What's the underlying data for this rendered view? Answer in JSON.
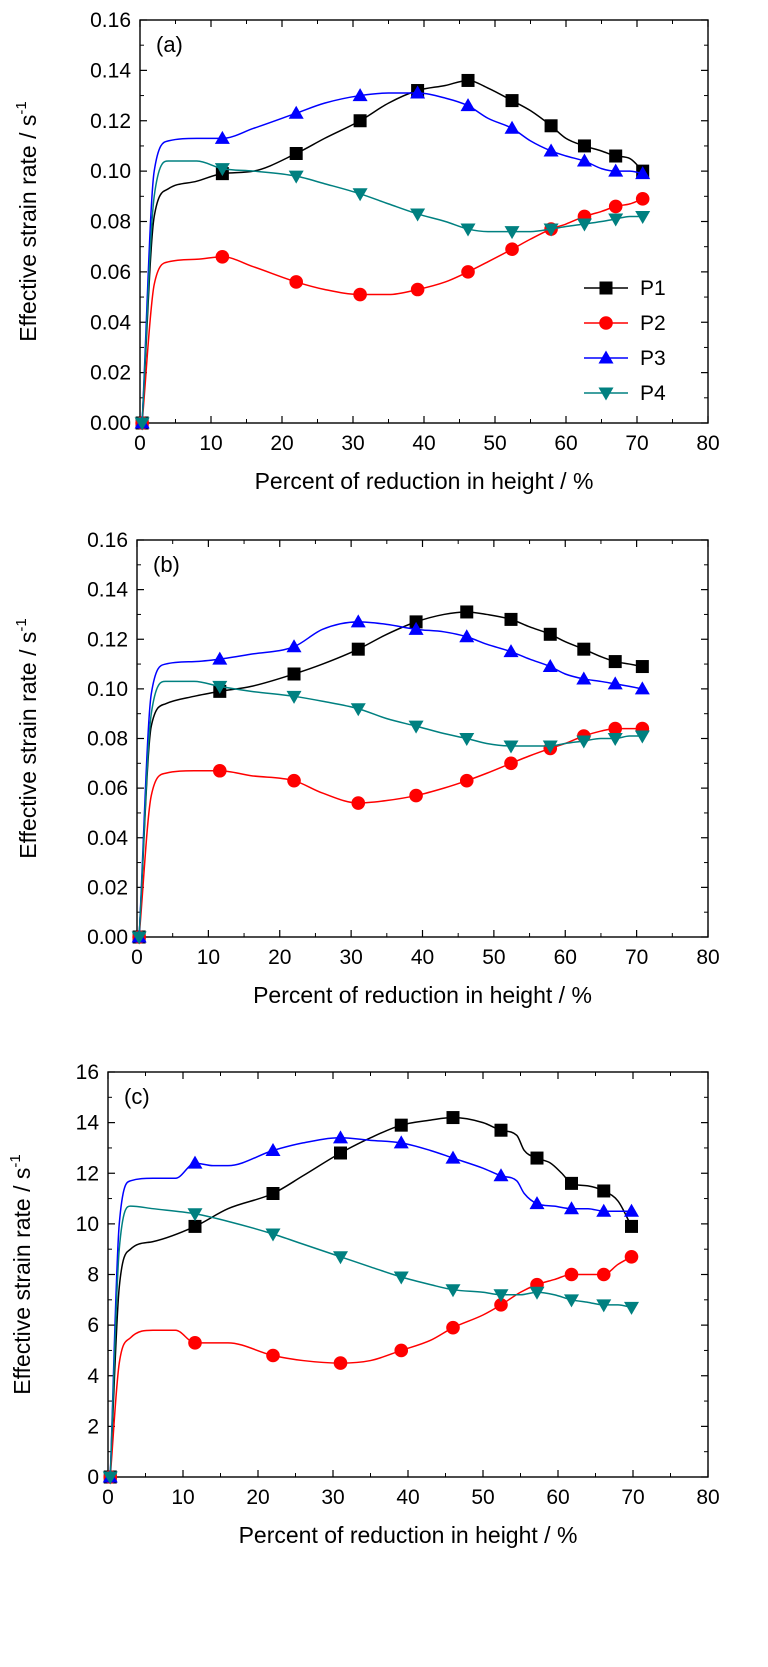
{
  "series_styles": [
    {
      "name": "P1",
      "color": "#000000",
      "marker": "square"
    },
    {
      "name": "P2",
      "color": "#ff0000",
      "marker": "circle"
    },
    {
      "name": "P3",
      "color": "#0000ff",
      "marker": "triangle-up"
    },
    {
      "name": "P4",
      "color": "#008080",
      "marker": "triangle-down"
    }
  ],
  "chart_data": [
    {
      "type": "line",
      "panel_label": "(a)",
      "xlabel": "Percent of reduction in height / %",
      "ylabel": "Effective strain rate / s",
      "ylabel_superscript": "-1",
      "xlim": [
        0,
        80
      ],
      "ylim": [
        0,
        0.16
      ],
      "xticks": [
        "0",
        "10",
        "20",
        "30",
        "40",
        "50",
        "60",
        "70",
        "80"
      ],
      "yticks": [
        "0.00",
        "0.02",
        "0.04",
        "0.06",
        "0.08",
        "0.10",
        "0.12",
        "0.14",
        "0.16"
      ],
      "legend": [
        "P1",
        "P2",
        "P3",
        "P4"
      ],
      "legend_position": "right",
      "grid": false,
      "x": [
        0.3,
        11.6,
        22.0,
        31.0,
        39.1,
        46.2,
        52.4,
        57.9,
        62.6,
        67.0,
        70.8
      ],
      "series": [
        {
          "name": "P1",
          "values": [
            0.0,
            0.099,
            0.107,
            0.12,
            0.132,
            0.136,
            0.128,
            0.118,
            0.11,
            0.106,
            0.1
          ],
          "curve_x": [
            0.3,
            2,
            4,
            8,
            11.6,
            16,
            22.0,
            26,
            31.0,
            35,
            39.1,
            43,
            46.2,
            49,
            52.4,
            55,
            57.9,
            60,
            62.6,
            65,
            67.0,
            69,
            70.8
          ],
          "curve_y": [
            0.0,
            0.082,
            0.093,
            0.096,
            0.099,
            0.1,
            0.107,
            0.113,
            0.12,
            0.127,
            0.132,
            0.134,
            0.136,
            0.133,
            0.128,
            0.124,
            0.118,
            0.113,
            0.11,
            0.108,
            0.106,
            0.105,
            0.1
          ]
        },
        {
          "name": "P2",
          "values": [
            0.0,
            0.066,
            0.056,
            0.051,
            0.053,
            0.06,
            0.069,
            0.077,
            0.082,
            0.086,
            0.089
          ],
          "curve_x": [
            0.3,
            2,
            4,
            8,
            11.6,
            16,
            22.0,
            26,
            31.0,
            35,
            39.1,
            43,
            46.2,
            49,
            52.4,
            55,
            57.9,
            60,
            62.6,
            65,
            67.0,
            69,
            70.8
          ],
          "curve_y": [
            0.0,
            0.055,
            0.064,
            0.065,
            0.066,
            0.062,
            0.056,
            0.053,
            0.051,
            0.051,
            0.053,
            0.056,
            0.06,
            0.064,
            0.069,
            0.073,
            0.077,
            0.079,
            0.082,
            0.084,
            0.086,
            0.087,
            0.089
          ]
        },
        {
          "name": "P3",
          "values": [
            0.0,
            0.113,
            0.123,
            0.13,
            0.131,
            0.126,
            0.117,
            0.108,
            0.104,
            0.1,
            0.099
          ],
          "curve_x": [
            0.3,
            2,
            4,
            8,
            11.6,
            16,
            22.0,
            26,
            31.0,
            35,
            39.1,
            43,
            46.2,
            49,
            52.4,
            55,
            57.9,
            60,
            62.6,
            65,
            67.0,
            69,
            70.8
          ],
          "curve_y": [
            0.0,
            0.1,
            0.112,
            0.113,
            0.113,
            0.117,
            0.123,
            0.127,
            0.13,
            0.131,
            0.131,
            0.129,
            0.126,
            0.121,
            0.117,
            0.112,
            0.108,
            0.106,
            0.104,
            0.101,
            0.1,
            0.1,
            0.099
          ]
        },
        {
          "name": "P4",
          "values": [
            0.0,
            0.101,
            0.098,
            0.091,
            0.083,
            0.077,
            0.076,
            0.077,
            0.079,
            0.081,
            0.082
          ],
          "curve_x": [
            0.3,
            2,
            4,
            8,
            11.6,
            16,
            22.0,
            26,
            31.0,
            35,
            39.1,
            43,
            46.2,
            49,
            52.4,
            55,
            57.9,
            60,
            62.6,
            65,
            67.0,
            69,
            70.8
          ],
          "curve_y": [
            0.0,
            0.09,
            0.104,
            0.104,
            0.101,
            0.1,
            0.098,
            0.095,
            0.091,
            0.087,
            0.083,
            0.08,
            0.077,
            0.076,
            0.076,
            0.076,
            0.077,
            0.078,
            0.079,
            0.08,
            0.081,
            0.082,
            0.082
          ]
        }
      ]
    },
    {
      "type": "line",
      "panel_label": "(b)",
      "xlabel": "Percent of reduction in height / %",
      "ylabel": "Effective strain rate / s",
      "ylabel_superscript": "-1",
      "xlim": [
        0,
        80
      ],
      "ylim": [
        0,
        0.16
      ],
      "xticks": [
        "0",
        "10",
        "20",
        "30",
        "40",
        "50",
        "60",
        "70",
        "80"
      ],
      "yticks": [
        "0.00",
        "0.02",
        "0.04",
        "0.06",
        "0.08",
        "0.10",
        "0.12",
        "0.14",
        "0.16"
      ],
      "legend": [],
      "grid": false,
      "x": [
        0.3,
        11.6,
        22.0,
        31.0,
        39.1,
        46.2,
        52.4,
        57.9,
        62.6,
        67.0,
        70.8
      ],
      "series": [
        {
          "name": "P1",
          "values": [
            0.0,
            0.099,
            0.106,
            0.116,
            0.127,
            0.131,
            0.128,
            0.122,
            0.116,
            0.111,
            0.109
          ],
          "curve_x": [
            0.3,
            2,
            4,
            8,
            11.6,
            16,
            22.0,
            26,
            31.0,
            35,
            39.1,
            43,
            46.2,
            49,
            52.4,
            55,
            57.9,
            60,
            62.6,
            65,
            67.0,
            69,
            70.8
          ],
          "curve_y": [
            0.0,
            0.085,
            0.094,
            0.097,
            0.099,
            0.101,
            0.106,
            0.11,
            0.116,
            0.122,
            0.127,
            0.13,
            0.131,
            0.13,
            0.128,
            0.125,
            0.122,
            0.119,
            0.116,
            0.113,
            0.111,
            0.11,
            0.109
          ]
        },
        {
          "name": "P2",
          "values": [
            0.0,
            0.067,
            0.063,
            0.054,
            0.057,
            0.063,
            0.07,
            0.076,
            0.081,
            0.084,
            0.084
          ],
          "curve_x": [
            0.3,
            2,
            4,
            8,
            11.6,
            16,
            22.0,
            26,
            31.0,
            35,
            39.1,
            43,
            46.2,
            49,
            52.4,
            55,
            57.9,
            60,
            62.6,
            65,
            67.0,
            69,
            70.8
          ],
          "curve_y": [
            0.0,
            0.057,
            0.066,
            0.067,
            0.067,
            0.065,
            0.063,
            0.058,
            0.054,
            0.055,
            0.057,
            0.06,
            0.063,
            0.066,
            0.07,
            0.073,
            0.076,
            0.078,
            0.081,
            0.083,
            0.084,
            0.084,
            0.084
          ]
        },
        {
          "name": "P3",
          "values": [
            0.0,
            0.112,
            0.117,
            0.127,
            0.124,
            0.121,
            0.115,
            0.109,
            0.104,
            0.102,
            0.1
          ],
          "curve_x": [
            0.3,
            2,
            4,
            8,
            11.6,
            16,
            22.0,
            26,
            31.0,
            35,
            39.1,
            43,
            46.2,
            49,
            52.4,
            55,
            57.9,
            60,
            62.6,
            65,
            67.0,
            69,
            70.8
          ],
          "curve_y": [
            0.0,
            0.098,
            0.11,
            0.111,
            0.112,
            0.114,
            0.117,
            0.124,
            0.127,
            0.126,
            0.124,
            0.123,
            0.121,
            0.118,
            0.115,
            0.112,
            0.109,
            0.106,
            0.104,
            0.103,
            0.102,
            0.101,
            0.1
          ]
        },
        {
          "name": "P4",
          "values": [
            0.0,
            0.101,
            0.097,
            0.092,
            0.085,
            0.08,
            0.077,
            0.077,
            0.079,
            0.08,
            0.081
          ],
          "curve_x": [
            0.3,
            2,
            4,
            8,
            11.6,
            16,
            22.0,
            26,
            31.0,
            35,
            39.1,
            43,
            46.2,
            49,
            52.4,
            55,
            57.9,
            60,
            62.6,
            65,
            67.0,
            69,
            70.8
          ],
          "curve_y": [
            0.0,
            0.09,
            0.103,
            0.103,
            0.101,
            0.099,
            0.097,
            0.095,
            0.092,
            0.088,
            0.085,
            0.082,
            0.08,
            0.078,
            0.077,
            0.077,
            0.077,
            0.078,
            0.079,
            0.08,
            0.08,
            0.081,
            0.081
          ]
        }
      ]
    },
    {
      "type": "line",
      "panel_label": "(c)",
      "xlabel": "Percent of reduction in height / %",
      "ylabel": "Effective strain rate / s",
      "ylabel_superscript": "-1",
      "xlim": [
        0,
        80
      ],
      "ylim": [
        0,
        16
      ],
      "xticks": [
        "0",
        "10",
        "20",
        "30",
        "40",
        "50",
        "60",
        "70",
        "80"
      ],
      "yticks": [
        "0",
        "2",
        "4",
        "6",
        "8",
        "10",
        "12",
        "14",
        "16"
      ],
      "legend": [],
      "grid": false,
      "x": [
        0.3,
        11.6,
        22.0,
        31.0,
        39.1,
        46.0,
        52.4,
        57.2,
        61.8,
        66.1,
        69.8
      ],
      "series": [
        {
          "name": "P1",
          "values": [
            0.0,
            9.9,
            11.2,
            12.8,
            13.9,
            14.2,
            13.7,
            12.6,
            11.6,
            11.3,
            9.9
          ],
          "curve_x": [
            0.3,
            1.5,
            3,
            6,
            11.6,
            16,
            22.0,
            26,
            31.0,
            35,
            39.1,
            43,
            46.0,
            50,
            52.4,
            54.5,
            55.5,
            57.2,
            59,
            60.5,
            61.8,
            64,
            66.1,
            68,
            69.8
          ],
          "curve_y": [
            0.0,
            7.5,
            9.0,
            9.3,
            9.9,
            10.6,
            11.2,
            11.9,
            12.8,
            13.4,
            13.9,
            14.1,
            14.2,
            14.0,
            13.7,
            13.5,
            12.9,
            12.6,
            12.4,
            12.0,
            11.6,
            11.5,
            11.3,
            10.9,
            9.9
          ]
        },
        {
          "name": "P2",
          "values": [
            0.0,
            5.3,
            4.8,
            4.5,
            5.0,
            5.9,
            6.8,
            7.6,
            8.0,
            8.0,
            8.7
          ],
          "curve_x": [
            0.3,
            1.5,
            3,
            6,
            9,
            11.6,
            16,
            22.0,
            26,
            31.0,
            35,
            39.1,
            43,
            46.0,
            50,
            52.4,
            55,
            57.2,
            59.5,
            61.8,
            64,
            66.1,
            68,
            69.8
          ],
          "curve_y": [
            0.0,
            4.5,
            5.5,
            5.8,
            5.8,
            5.3,
            5.3,
            4.8,
            4.6,
            4.5,
            4.6,
            5.0,
            5.4,
            5.9,
            6.4,
            6.8,
            7.3,
            7.6,
            7.8,
            8.0,
            8.0,
            8.0,
            8.4,
            8.7
          ]
        },
        {
          "name": "P3",
          "values": [
            0.0,
            12.4,
            12.9,
            13.4,
            13.2,
            12.6,
            11.9,
            10.8,
            10.6,
            10.5,
            10.5
          ],
          "curve_x": [
            0.3,
            1.5,
            3,
            6,
            9,
            11.6,
            14,
            16,
            22.0,
            26,
            31.0,
            35,
            39.1,
            43,
            46.0,
            50,
            52.4,
            54.5,
            55.5,
            57.2,
            59.5,
            61.8,
            64,
            66.1,
            68,
            69.8
          ],
          "curve_y": [
            0.0,
            10.0,
            11.7,
            11.8,
            11.8,
            12.4,
            12.3,
            12.3,
            12.9,
            13.2,
            13.4,
            13.3,
            13.2,
            12.9,
            12.6,
            12.2,
            11.9,
            11.7,
            11.2,
            10.8,
            10.7,
            10.6,
            10.6,
            10.5,
            10.5,
            10.5
          ]
        },
        {
          "name": "P4",
          "values": [
            0.0,
            10.4,
            9.6,
            8.7,
            7.9,
            7.4,
            7.2,
            7.3,
            7.0,
            6.8,
            6.7
          ],
          "curve_x": [
            0.3,
            1.5,
            3,
            6,
            11.6,
            16,
            22.0,
            26,
            31.0,
            35,
            39.1,
            43,
            46.0,
            50,
            52.4,
            55,
            57.2,
            59.5,
            61.8,
            64,
            66.1,
            68,
            69.8
          ],
          "curve_y": [
            0.0,
            9.0,
            10.7,
            10.6,
            10.4,
            10.1,
            9.6,
            9.2,
            8.7,
            8.3,
            7.9,
            7.6,
            7.4,
            7.3,
            7.2,
            7.2,
            7.3,
            7.2,
            7.0,
            6.9,
            6.8,
            6.8,
            6.7
          ]
        }
      ]
    }
  ]
}
